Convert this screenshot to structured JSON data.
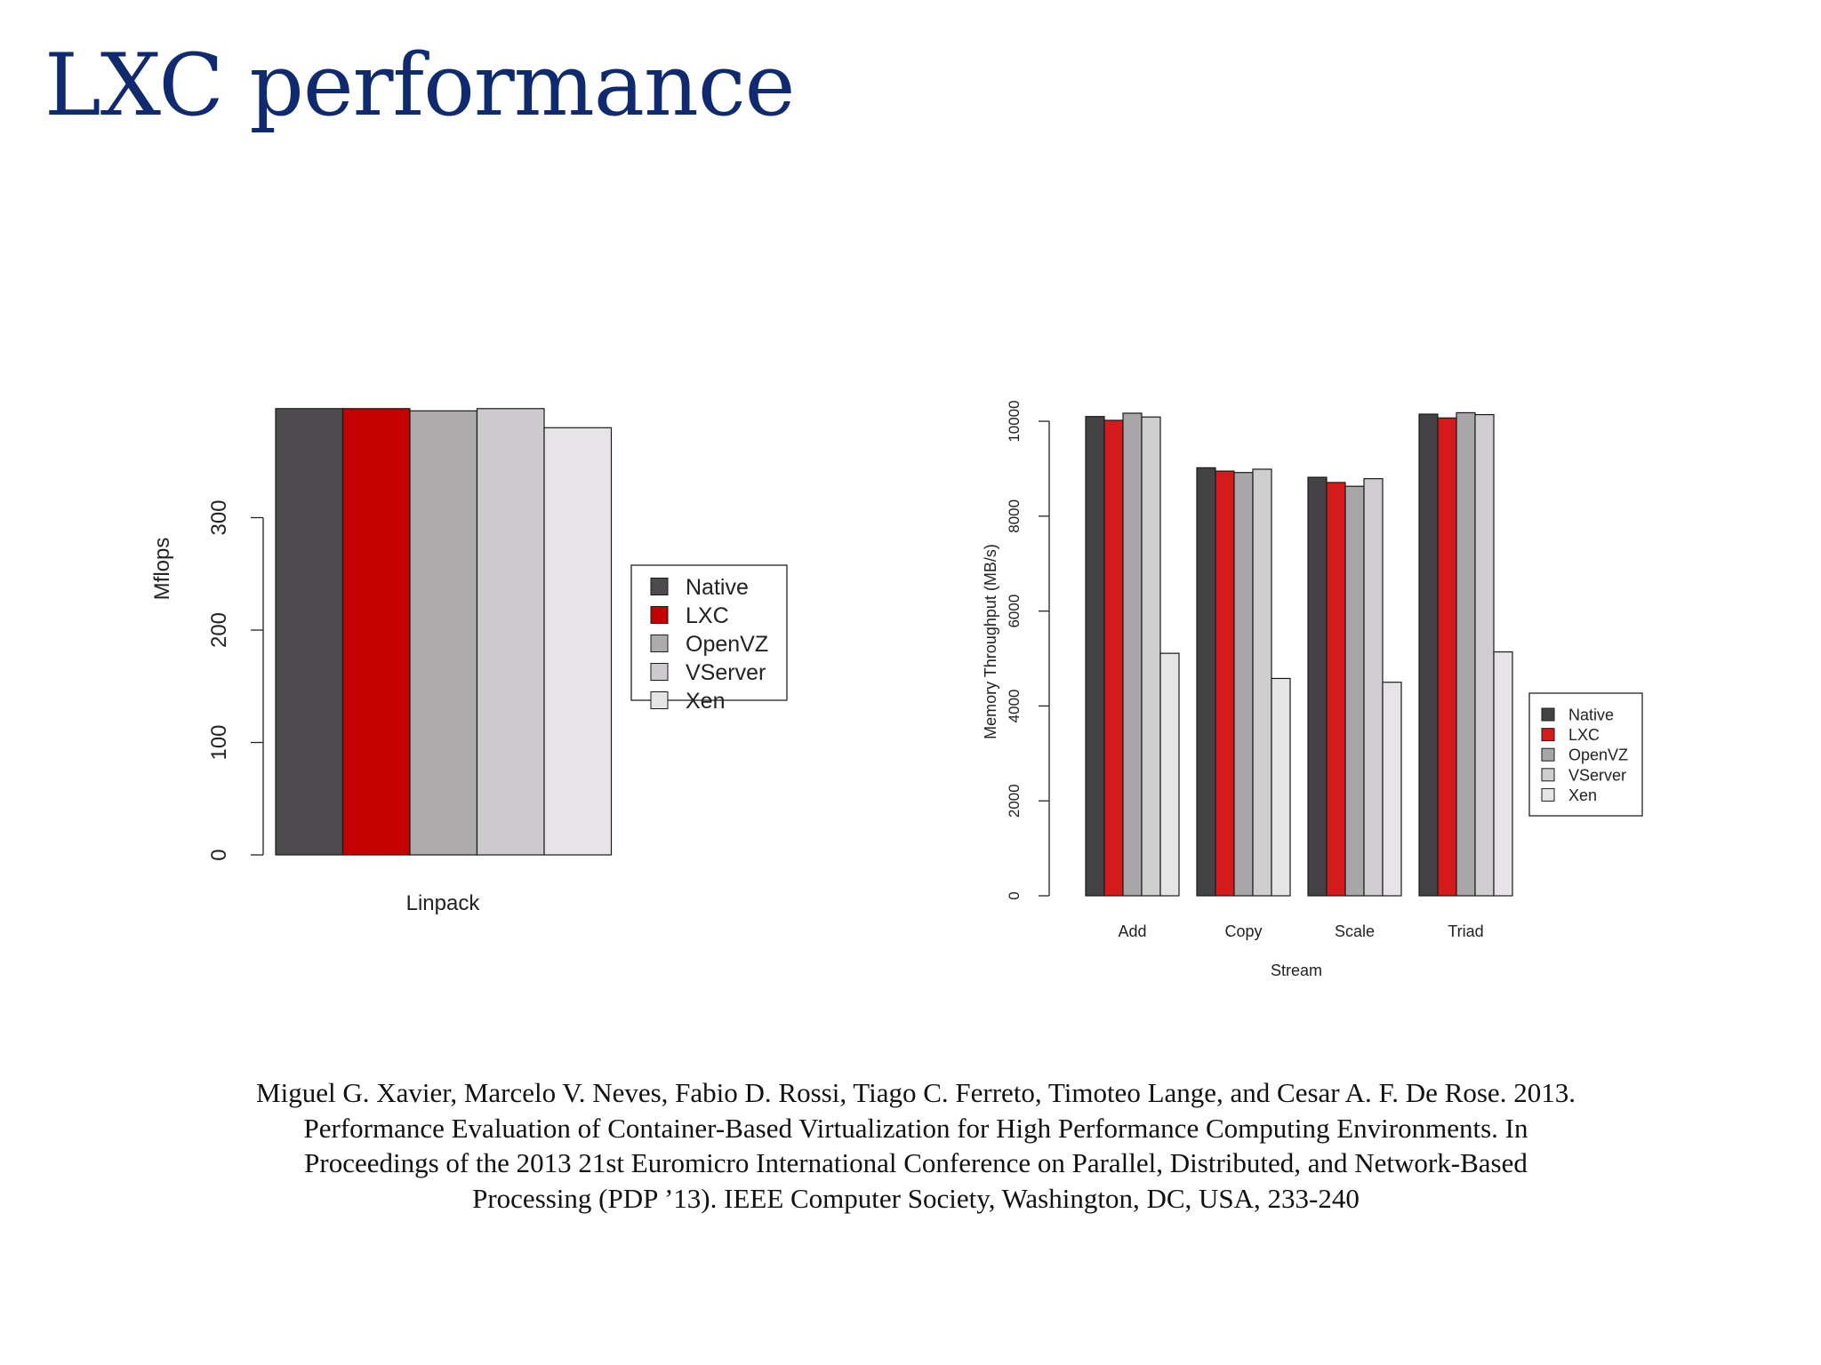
{
  "slide": {
    "title": "LXC performance",
    "citation": [
      "Miguel G. Xavier, Marcelo V. Neves, Fabio D. Rossi, Tiago C. Ferreto, Timoteo Lange, and Cesar A. F. De Rose. 2013.",
      "Performance Evaluation of Container-Based Virtualization for High Performance Computing Environments. In",
      "Proceedings of the 2013 21st Euromicro International Conference on Parallel, Distributed, and Network-Based",
      "Processing (PDP ’13). IEEE Computer Society, Washington, DC, USA, 233-240"
    ]
  },
  "chart_data": [
    {
      "type": "bar",
      "title": "",
      "xlabel": "Linpack",
      "ylabel": "Mflops",
      "ylim": [
        0,
        400
      ],
      "yticks": [
        "0",
        "100",
        "200",
        "300"
      ],
      "legend_position": "right",
      "categories": [
        "Linpack"
      ],
      "series": [
        {
          "name": "Native",
          "color": "#4d4a4d",
          "values": [
            397
          ]
        },
        {
          "name": "LXC",
          "color": "#c40000",
          "values": [
            397
          ]
        },
        {
          "name": "OpenVZ",
          "color": "#aeabad",
          "values": [
            395
          ]
        },
        {
          "name": "VServer",
          "color": "#cdcbcd",
          "values": [
            397
          ]
        },
        {
          "name": "Xen",
          "color": "#e6e4e7",
          "values": [
            380
          ]
        }
      ]
    },
    {
      "type": "bar",
      "title": "",
      "xlabel": "Stream",
      "ylabel": "Memory Throughput (MB/s)",
      "ylim": [
        0,
        10600
      ],
      "yticks": [
        "0",
        "2000",
        "4000",
        "6000",
        "8000",
        "10000"
      ],
      "legend_position": "bottom-right",
      "categories": [
        "Add",
        "Copy",
        "Scale",
        "Triad"
      ],
      "series": [
        {
          "name": "Native",
          "color": "#444245",
          "values": [
            10100,
            9020,
            8820,
            10150
          ]
        },
        {
          "name": "LXC",
          "color": "#d41a1a",
          "values": [
            10020,
            8950,
            8710,
            10070
          ]
        },
        {
          "name": "OpenVZ",
          "color": "#a8a6a8",
          "values": [
            10170,
            8920,
            8630,
            10180
          ]
        },
        {
          "name": "VServer",
          "color": "#cfcdcf",
          "values": [
            10090,
            8990,
            8790,
            10140
          ]
        },
        {
          "name": "Xen",
          "color": "#e6e4e7",
          "values": [
            5110,
            4580,
            4500,
            5140
          ]
        }
      ]
    }
  ]
}
